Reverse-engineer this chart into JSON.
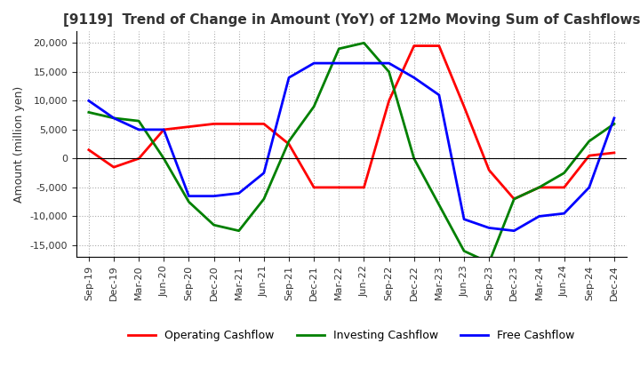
{
  "title": "[9119]  Trend of Change in Amount (YoY) of 12Mo Moving Sum of Cashflows",
  "ylabel": "Amount (million yen)",
  "ylim": [
    -17000,
    22000
  ],
  "yticks": [
    -15000,
    -10000,
    -5000,
    0,
    5000,
    10000,
    15000,
    20000
  ],
  "x_labels": [
    "Sep-19",
    "Dec-19",
    "Mar-20",
    "Jun-20",
    "Sep-20",
    "Dec-20",
    "Mar-21",
    "Jun-21",
    "Sep-21",
    "Dec-21",
    "Mar-22",
    "Jun-22",
    "Sep-22",
    "Dec-22",
    "Mar-23",
    "Jun-23",
    "Sep-23",
    "Dec-23",
    "Mar-24",
    "Jun-24",
    "Sep-24",
    "Dec-24"
  ],
  "operating": [
    1500,
    -1500,
    0,
    5000,
    5500,
    6000,
    6000,
    6000,
    2500,
    -5000,
    -5000,
    -5000,
    10000,
    19500,
    19500,
    9000,
    -2000,
    -7000,
    -5000,
    -5000,
    500,
    1000
  ],
  "investing": [
    8000,
    7000,
    6500,
    0,
    -7500,
    -11500,
    -12500,
    -7000,
    3000,
    9000,
    19000,
    20000,
    15000,
    0,
    -8000,
    -16000,
    -18000,
    -7000,
    -5000,
    -2500,
    3000,
    6000
  ],
  "free": [
    10000,
    7000,
    5000,
    5000,
    -6500,
    -6500,
    -6000,
    -2500,
    14000,
    16500,
    16500,
    16500,
    16500,
    14000,
    11000,
    -10500,
    -12000,
    -12500,
    -10000,
    -9500,
    -5000,
    7000
  ],
  "op_color": "#ff0000",
  "inv_color": "#008000",
  "free_color": "#0000ff",
  "bg_color": "#ffffff",
  "grid_color": "#aaaaaa"
}
